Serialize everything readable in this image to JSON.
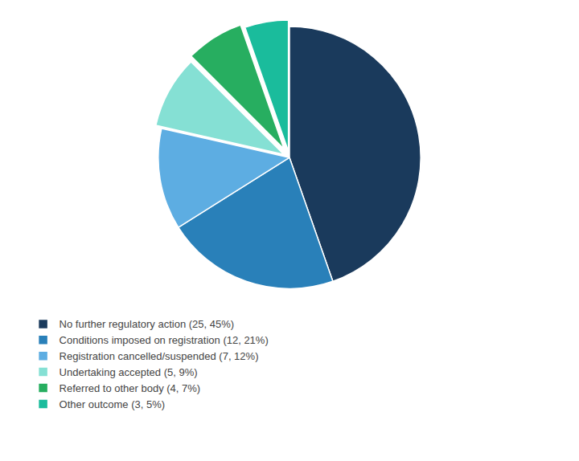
{
  "chart_data": {
    "type": "pie",
    "categories": [
      "No further regulatory action (25, 45%)",
      "Conditions imposed on registration (12, 21%)",
      "Registration cancelled/suspended (7, 12%)",
      "Undertaking accepted (5, 9%)",
      "Referred to other body (4, 7%)",
      "Other outcome (3, 5%)"
    ],
    "values": [
      25,
      12,
      7,
      5,
      4,
      3
    ],
    "colors": [
      "#1a3a5c",
      "#2980b9",
      "#5dade2",
      "#85e0d4",
      "#27ae60",
      "#1abc9c"
    ],
    "legend": "bottom"
  }
}
